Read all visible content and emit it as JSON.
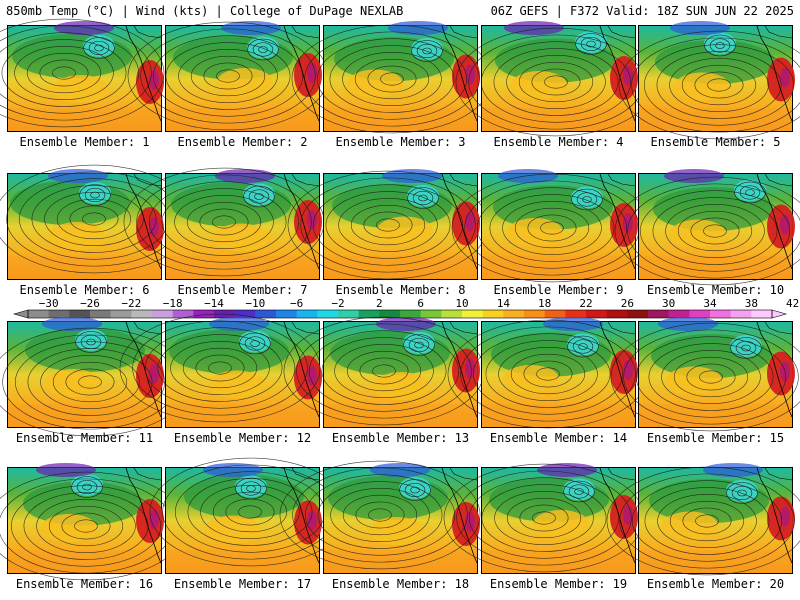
{
  "header": {
    "left": "850mb Temp (°C) | Wind (kts) | College of DuPage NEXLAB",
    "right": "06Z GEFS | F372 Valid: 18Z SUN JUN 22 2025"
  },
  "members": [
    "Ensemble Member: 1",
    "Ensemble Member: 2",
    "Ensemble Member: 3",
    "Ensemble Member: 4",
    "Ensemble Member: 5",
    "Ensemble Member: 6",
    "Ensemble Member: 7",
    "Ensemble Member: 8",
    "Ensemble Member: 9",
    "Ensemble Member: 10",
    "Ensemble Member: 11",
    "Ensemble Member: 12",
    "Ensemble Member: 13",
    "Ensemble Member: 14",
    "Ensemble Member: 15",
    "Ensemble Member: 16",
    "Ensemble Member: 17",
    "Ensemble Member: 18",
    "Ensemble Member: 19",
    "Ensemble Member: 20"
  ],
  "colorbar": {
    "labels": [
      "−30",
      "−26",
      "−22",
      "−18",
      "−14",
      "−10",
      "−6",
      "−2",
      "2",
      "6",
      "10",
      "14",
      "18",
      "22",
      "26",
      "30",
      "34",
      "38",
      "42"
    ],
    "colors": [
      "#8c8c8c",
      "#6e6e6e",
      "#545454",
      "#7a7a7a",
      "#9b9b9b",
      "#b9b9b9",
      "#c9a0dc",
      "#b060d0",
      "#9a20c0",
      "#6a1fb0",
      "#4c2fc8",
      "#2e58d8",
      "#1f86e8",
      "#17b6f0",
      "#1fd8e6",
      "#2fd0a8",
      "#1aa060",
      "#148a3c",
      "#3aa83a",
      "#78c83a",
      "#b8e03a",
      "#f0f03a",
      "#f8d020",
      "#f8b020",
      "#f89018",
      "#f06018",
      "#e83018",
      "#d01818",
      "#b01010",
      "#901010",
      "#a01860",
      "#c02090",
      "#e040c0",
      "#f070e0",
      "#f8a0f0",
      "#ffc8ff"
    ]
  }
}
